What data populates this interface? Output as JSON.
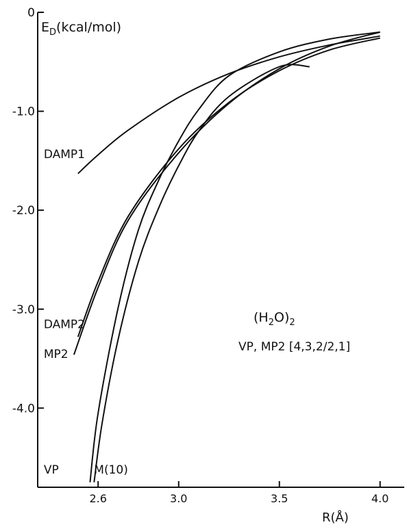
{
  "chart_data": {
    "type": "line",
    "ylabel_main": "E",
    "ylabel_sub": "D",
    "ylabel_unit": "(kcal/mol)",
    "xlabel": "R(Å)",
    "xlim": [
      2.3,
      4.12
    ],
    "ylim": [
      -4.8,
      0
    ],
    "xticks": [
      {
        "v": 2.6,
        "t": "2.6"
      },
      {
        "v": 3.0,
        "t": "3.0"
      },
      {
        "v": 3.5,
        "t": "3.5"
      },
      {
        "v": 4.0,
        "t": "4.0"
      }
    ],
    "yticks": [
      {
        "v": 0,
        "t": "0"
      },
      {
        "v": -1.0,
        "t": "-1.0"
      },
      {
        "v": -2.0,
        "t": "-2.0"
      },
      {
        "v": -3.0,
        "t": "-3.0"
      },
      {
        "v": -4.0,
        "t": "-4.0"
      }
    ],
    "annotation": {
      "title_main": "(H",
      "title_sub1": "2",
      "title_mid": "O)",
      "title_sub2": "2",
      "subtitle": "VP, MP2 [4,3,2/2,1]"
    },
    "series": [
      {
        "name": "DAMP1",
        "label_anchor": {
          "x": 2.33,
          "y": -1.43
        },
        "points": [
          [
            2.5,
            -1.63
          ],
          [
            2.6,
            -1.44
          ],
          [
            2.75,
            -1.19
          ],
          [
            3.0,
            -0.86
          ],
          [
            3.25,
            -0.62
          ],
          [
            3.5,
            -0.45
          ],
          [
            3.75,
            -0.33
          ],
          [
            4.0,
            -0.24
          ]
        ]
      },
      {
        "name": "DAMP2",
        "label_anchor": {
          "x": 2.33,
          "y": -3.15
        },
        "points": [
          [
            2.5,
            -3.28
          ],
          [
            2.6,
            -2.72
          ],
          [
            2.75,
            -2.06
          ],
          [
            3.0,
            -1.38
          ],
          [
            3.25,
            -0.91
          ],
          [
            3.5,
            -0.59
          ],
          [
            3.75,
            -0.38
          ],
          [
            4.0,
            -0.26
          ]
        ]
      },
      {
        "name": "MP2",
        "label_anchor": {
          "x": 2.33,
          "y": -3.45
        },
        "points": [
          [
            2.48,
            -3.46
          ],
          [
            2.6,
            -2.78
          ],
          [
            2.75,
            -2.1
          ],
          [
            3.0,
            -1.42
          ],
          [
            3.25,
            -0.92
          ],
          [
            3.5,
            -0.57
          ],
          [
            3.75,
            -0.34
          ],
          [
            4.0,
            -0.2
          ]
        ]
      },
      {
        "name": "VP",
        "label_anchor": {
          "x": 2.33,
          "y": -4.62
        },
        "points": [
          [
            2.56,
            -4.75
          ],
          [
            2.6,
            -4.05
          ],
          [
            2.7,
            -2.98
          ],
          [
            2.8,
            -2.2
          ],
          [
            2.9,
            -1.7
          ],
          [
            3.0,
            -1.3
          ],
          [
            3.1,
            -0.98
          ],
          [
            3.25,
            -0.64
          ],
          [
            3.5,
            -0.4
          ],
          [
            3.75,
            -0.27
          ],
          [
            4.0,
            -0.2
          ]
        ]
      },
      {
        "name": "M(10)",
        "label_anchor": {
          "x": 2.58,
          "y": -4.62
        },
        "points": [
          [
            2.58,
            -4.75
          ],
          [
            2.62,
            -4.15
          ],
          [
            2.7,
            -3.3
          ],
          [
            2.8,
            -2.52
          ],
          [
            2.9,
            -1.98
          ],
          [
            3.0,
            -1.55
          ],
          [
            3.1,
            -1.2
          ],
          [
            3.25,
            -0.85
          ],
          [
            3.5,
            -0.55
          ],
          [
            3.65,
            -0.55
          ]
        ]
      }
    ]
  }
}
